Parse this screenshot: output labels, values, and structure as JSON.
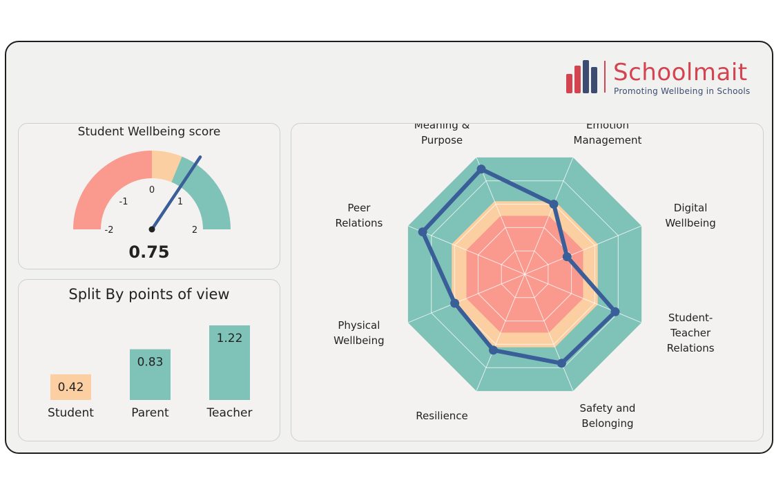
{
  "brand": {
    "name": "Schoolmait",
    "tagline": "Promoting Wellbeing in Schools",
    "colors": {
      "red": "#d34350",
      "navy": "#3c4b70"
    }
  },
  "gauge": {
    "title": "Student Wellbeing score",
    "value_label": "0.75",
    "value": 0.75,
    "min": -2,
    "max": 2,
    "ticks": [
      "-2",
      "-1",
      "0",
      "1",
      "2"
    ],
    "bands": [
      {
        "from": -2,
        "to": 0,
        "color": "#fa9a8f"
      },
      {
        "from": 0,
        "to": 0.5,
        "color": "#fbcfa1"
      },
      {
        "from": 0.5,
        "to": 2,
        "color": "#7fc2b7"
      }
    ],
    "needle_color": "#3a5f98"
  },
  "chart_data": [
    {
      "type": "bar",
      "title": "Split By points of view",
      "categories": [
        "Student",
        "Parent",
        "Teacher"
      ],
      "values": [
        0.42,
        0.83,
        1.22
      ],
      "value_labels": [
        "0.42",
        "0.83",
        "1.22"
      ],
      "colors": [
        "#fbcfa1",
        "#7fc2b7",
        "#7fc2b7"
      ],
      "ylim": [
        0,
        1.22
      ]
    },
    {
      "type": "radar",
      "axes": [
        "Emotion Management",
        "Digital Wellbeing",
        "Student-Teacher Relations",
        "Safety and Belonging",
        "Resilience",
        "Physical Wellbeing",
        "Peer Relations",
        "Meaning & Purpose"
      ],
      "axis_label_lines": [
        [
          "Emotion",
          "Management"
        ],
        [
          "Digital",
          "Wellbeing"
        ],
        [
          "Student-",
          "Teacher",
          "Relations"
        ],
        [
          "Safety and",
          "Belonging"
        ],
        [
          "Resilience"
        ],
        [
          "Physical",
          "Wellbeing"
        ],
        [
          "Peer",
          "Relations"
        ],
        [
          "Meaning &",
          "Purpose"
        ]
      ],
      "range": [
        -2,
        2
      ],
      "bands": [
        {
          "from": 0.5,
          "to": 2,
          "color": "#7fc2b7"
        },
        {
          "from": 0,
          "to": 0.5,
          "color": "#fbcfa1"
        },
        {
          "from": -2,
          "to": 0,
          "color": "#fa9a8f"
        }
      ],
      "series": [
        {
          "values": [
            0.4,
            -0.55,
            1.1,
            1.05,
            0.6,
            0.4,
            1.5,
            1.6
          ],
          "color": "#3a5f98"
        }
      ]
    }
  ]
}
